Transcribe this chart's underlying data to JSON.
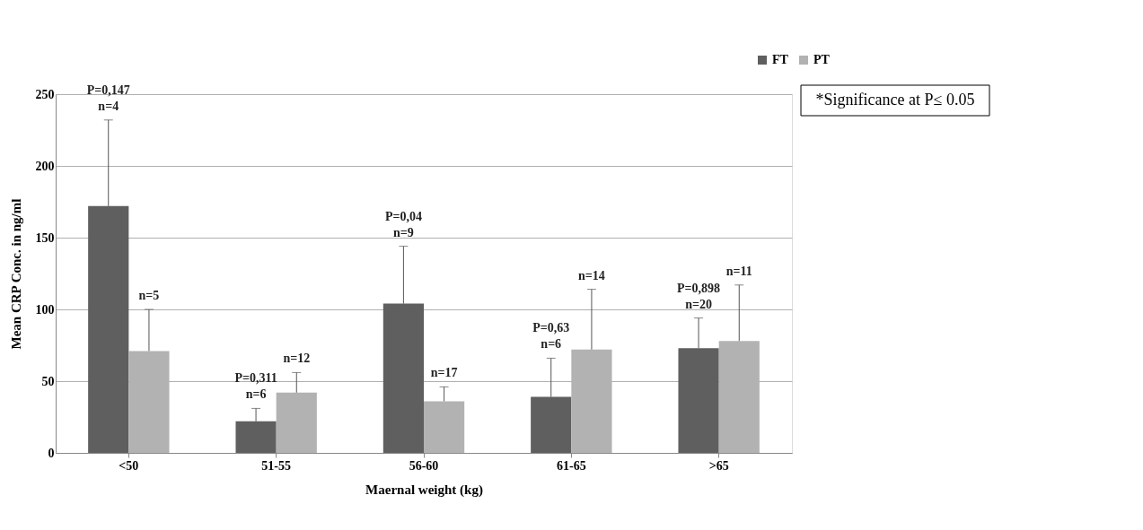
{
  "chart_data": {
    "type": "bar",
    "xlabel": "Maernal weight (kg)",
    "ylabel": "Mean CRP Conc. in ng/ml",
    "categories": [
      "<50",
      "51-55",
      "56-60",
      "61-65",
      ">65"
    ],
    "series": [
      {
        "name": "FT",
        "color": "#5f5f5f",
        "values": [
          172,
          22,
          104,
          39,
          73
        ],
        "errors": [
          [
            172,
            232
          ],
          [
            22,
            31
          ],
          [
            104,
            144
          ],
          [
            39,
            66
          ],
          [
            73,
            94
          ]
        ]
      },
      {
        "name": "PT",
        "color": "#b2b2b2",
        "values": [
          71,
          42,
          36,
          72,
          78
        ],
        "errors": [
          [
            71,
            100
          ],
          [
            42,
            56
          ],
          [
            36,
            46
          ],
          [
            72,
            114
          ],
          [
            78,
            117
          ]
        ]
      }
    ],
    "ylim": [
      0,
      250
    ],
    "yticks": [
      0,
      50,
      100,
      150,
      200,
      250
    ],
    "grid": "y",
    "legend": "top right",
    "annotations": [
      "P=0,147\nn=4",
      "n=5",
      "P=0,311\nn=6",
      "n=12",
      "P=0,04\nn=9",
      "n=17",
      "P=0,63\nn=6",
      "n=14",
      "P=0,898\nn=20",
      "n=11",
      "*Significance at P≤ 0.05"
    ]
  }
}
